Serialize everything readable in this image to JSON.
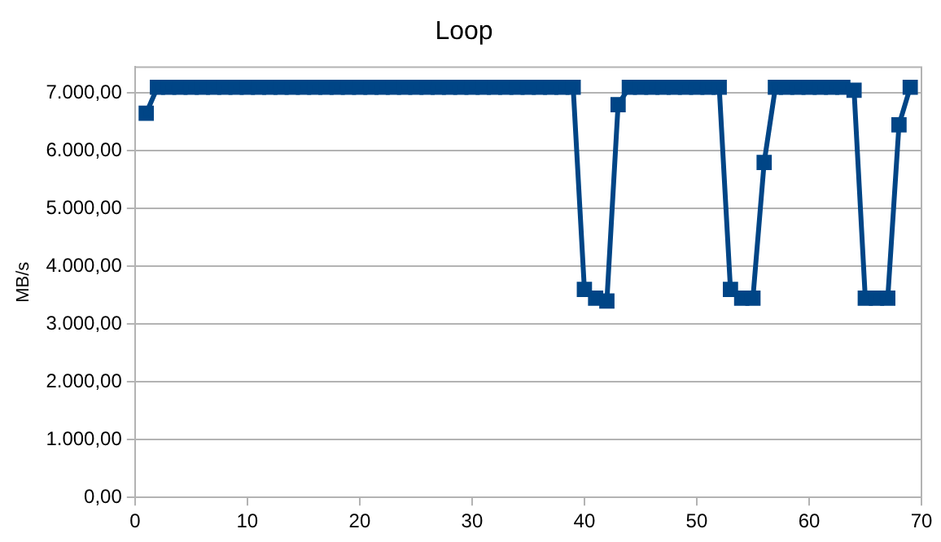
{
  "chart_data": {
    "type": "line",
    "title": "Loop",
    "ylabel": "MB/s",
    "x": [
      1,
      2,
      3,
      4,
      5,
      6,
      7,
      8,
      9,
      10,
      11,
      12,
      13,
      14,
      15,
      16,
      17,
      18,
      19,
      20,
      21,
      22,
      23,
      24,
      25,
      26,
      27,
      28,
      29,
      30,
      31,
      32,
      33,
      34,
      35,
      36,
      37,
      38,
      39,
      40,
      41,
      42,
      43,
      44,
      45,
      46,
      47,
      48,
      49,
      50,
      51,
      52,
      53,
      54,
      55,
      56,
      57,
      58,
      59,
      60,
      61,
      62,
      63,
      64,
      65,
      66,
      67,
      68,
      69
    ],
    "series": [
      {
        "color": "#004586",
        "values": [
          6650,
          7100,
          7100,
          7100,
          7100,
          7100,
          7100,
          7100,
          7100,
          7100,
          7100,
          7100,
          7100,
          7100,
          7100,
          7100,
          7100,
          7100,
          7100,
          7100,
          7100,
          7100,
          7100,
          7100,
          7100,
          7100,
          7100,
          7100,
          7100,
          7100,
          7100,
          7100,
          7100,
          7100,
          7100,
          7100,
          7100,
          7100,
          7100,
          3600,
          3450,
          3400,
          6800,
          7100,
          7100,
          7100,
          7100,
          7100,
          7100,
          7100,
          7100,
          7100,
          3600,
          3450,
          3450,
          5800,
          7100,
          7100,
          7100,
          7100,
          7100,
          7100,
          7100,
          7050,
          3450,
          3450,
          3450,
          6450,
          7100
        ]
      }
    ],
    "xlim": [
      0,
      70
    ],
    "xticks": [
      0,
      10,
      20,
      30,
      40,
      50,
      60,
      70
    ],
    "ylim": [
      0,
      7450
    ],
    "yticks": [
      {
        "value": 0,
        "label": "0,00"
      },
      {
        "value": 1000,
        "label": "1.000,00"
      },
      {
        "value": 2000,
        "label": "2.000,00"
      },
      {
        "value": 3000,
        "label": "3.000,00"
      },
      {
        "value": 4000,
        "label": "4.000,00"
      },
      {
        "value": 5000,
        "label": "5.000,00"
      },
      {
        "value": 6000,
        "label": "6.000,00"
      },
      {
        "value": 7000,
        "label": "7.000,00"
      }
    ],
    "grid": "y",
    "legend": false,
    "marker": "square",
    "line_style": "solid"
  }
}
